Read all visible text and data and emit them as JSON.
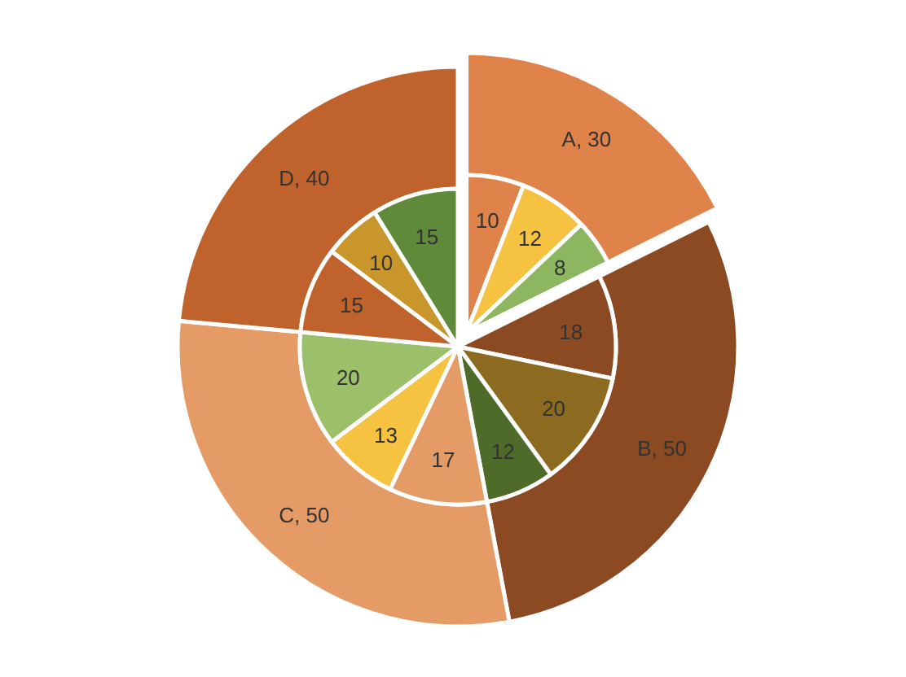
{
  "chart_data": [
    {
      "type": "donut",
      "categories": [
        null,
        null,
        null,
        null
      ],
      "values": [
        30,
        50,
        50,
        40
      ],
      "colors": [
        "#e0834a",
        "#8b4a22",
        "#e59b66",
        "#c0622c"
      ],
      "value_labels": [
        "A, 30",
        "B, 50",
        "C, 50",
        "D, 40"
      ]
    },
    {
      "type": "pie",
      "categories": [
        null,
        null,
        null,
        null,
        null,
        null,
        null,
        null,
        null,
        null,
        null,
        null
      ],
      "values": [
        10,
        12,
        8,
        18,
        20,
        12,
        17,
        13,
        20,
        15,
        10,
        15
      ],
      "colors": [
        "#e0834a",
        "#f5c242",
        "#8db660",
        "#8b4a22",
        "#8c6a1f",
        "#4e6b2a",
        "#e59b66",
        "#f5c242",
        "#9cbf6a",
        "#c0622c",
        "#c9962b",
        "#5f8a3a"
      ],
      "data_labels": true
    }
  ]
}
